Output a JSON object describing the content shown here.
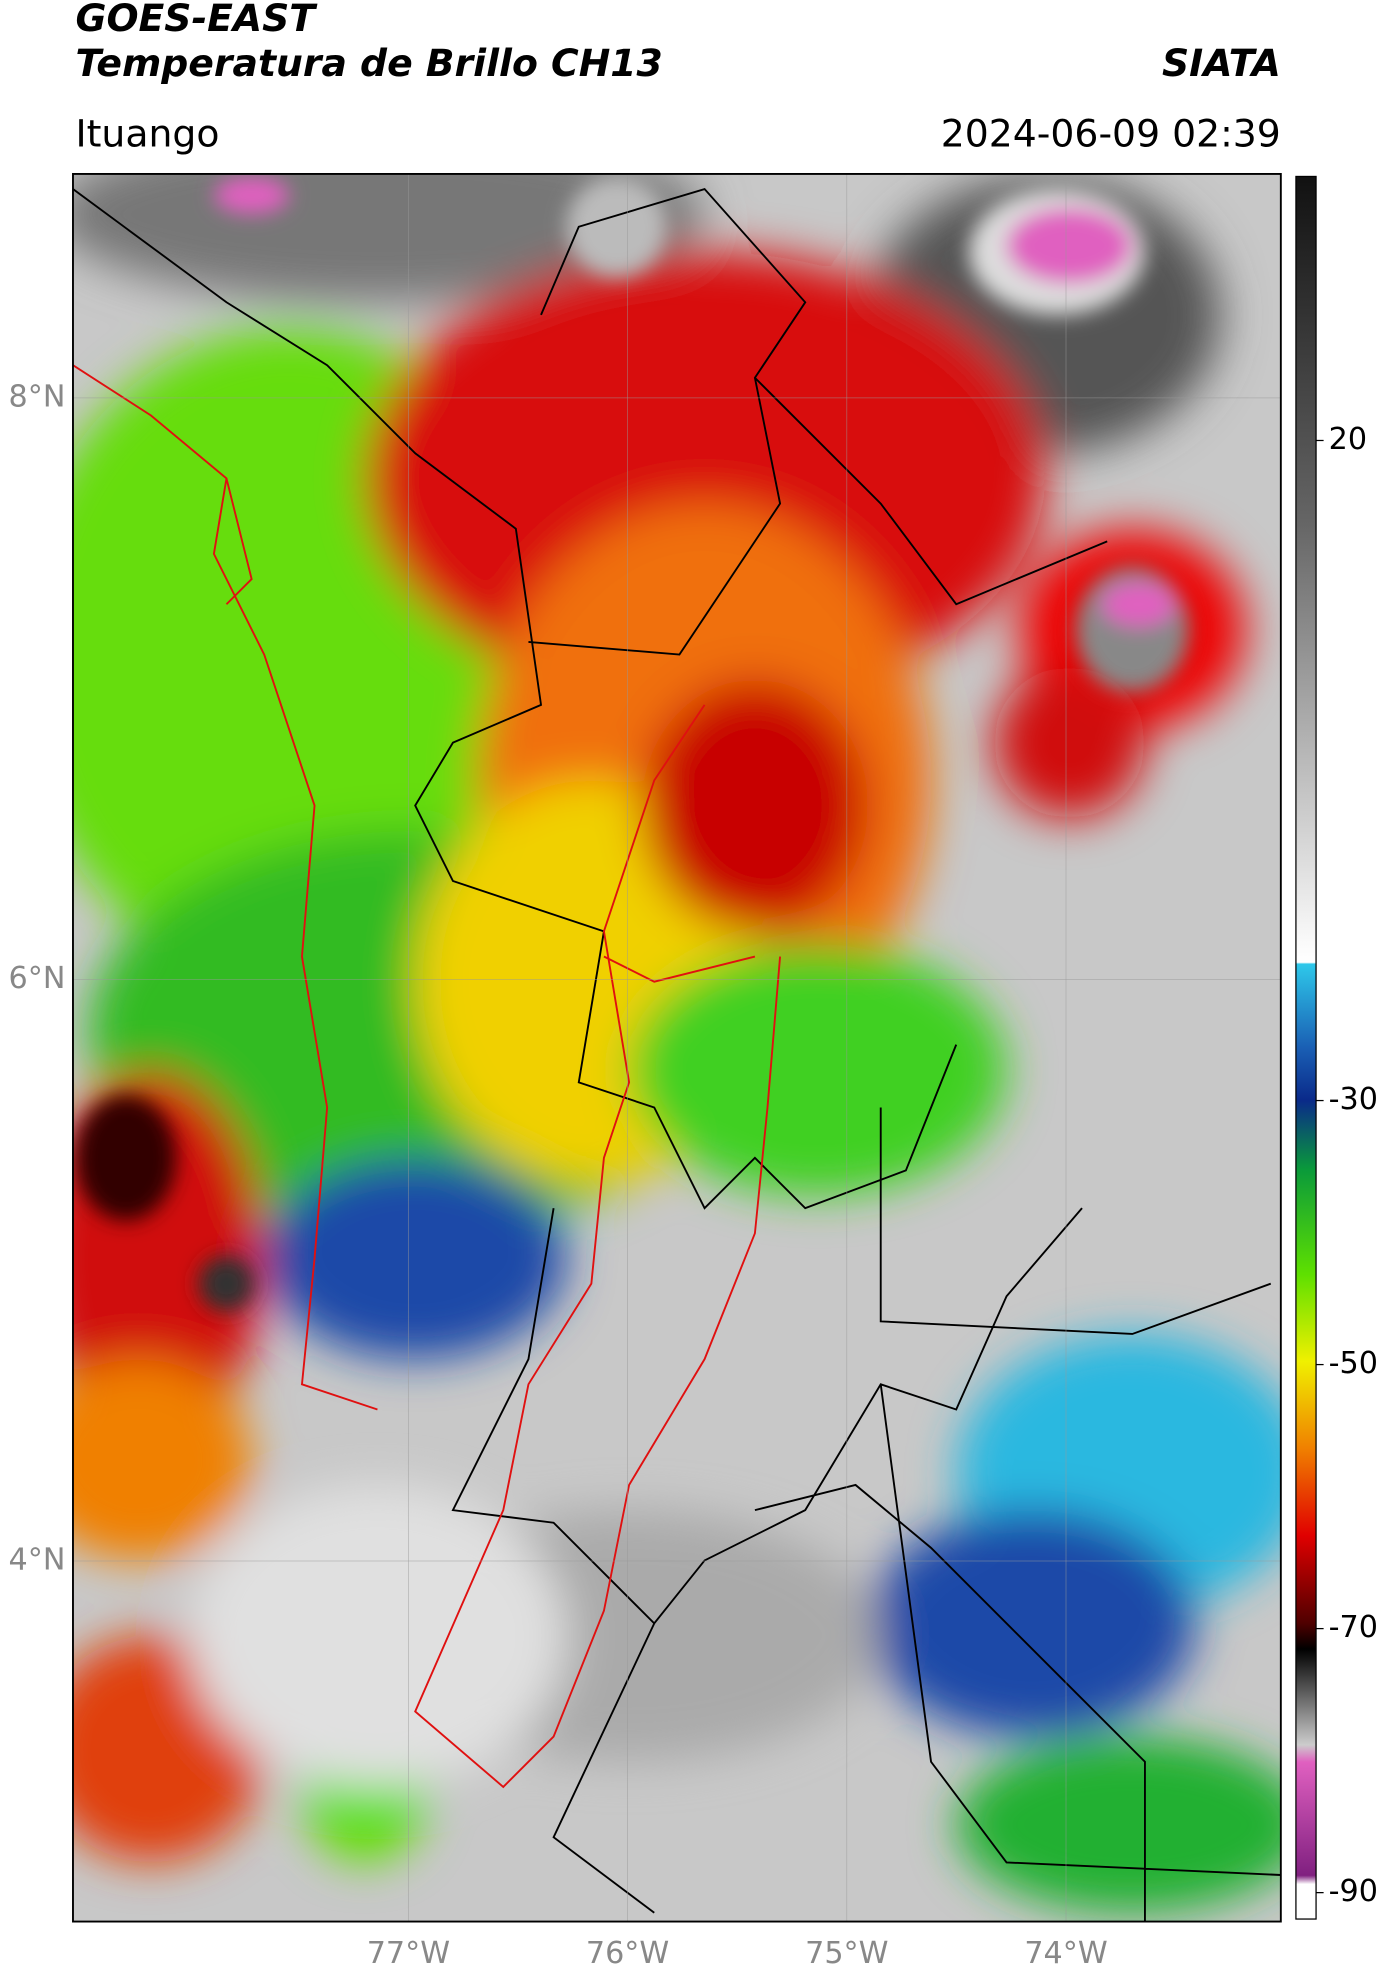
{
  "header": {
    "title": "GOES-EAST",
    "subtitle": "Temperatura de Brillo CH13",
    "source": "SIATA",
    "location": "Ituango",
    "datetime": "2024-06-09 02:39"
  },
  "map": {
    "xlim": [
      -78.53,
      -73.02
    ],
    "ylim": [
      2.76,
      8.77
    ],
    "xticks": [
      {
        "value": -77,
        "label": "77°W"
      },
      {
        "value": -76,
        "label": "76°W"
      },
      {
        "value": -75,
        "label": "75°W"
      },
      {
        "value": -74,
        "label": "74°W"
      }
    ],
    "yticks": [
      {
        "value": 8,
        "label": "8°N"
      },
      {
        "value": 6,
        "label": "6°N"
      },
      {
        "value": 4,
        "label": "4°N"
      }
    ]
  },
  "colorbar": {
    "range": [
      -92,
      40
    ],
    "ticks": [
      20,
      -30,
      -50,
      -70,
      -90
    ]
  }
}
